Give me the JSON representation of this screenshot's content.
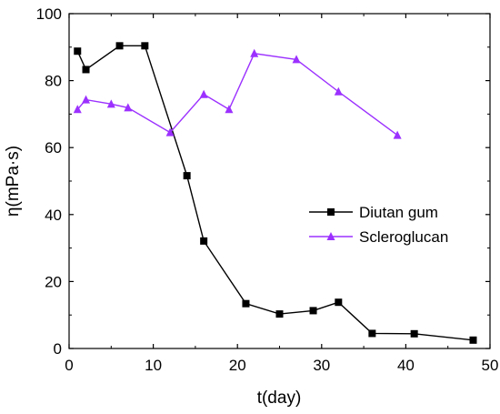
{
  "chart_data": {
    "type": "line",
    "title": "",
    "xlabel": "t(day)",
    "ylabel": "η(mPa·s)",
    "xlim": [
      0,
      50
    ],
    "ylim": [
      0,
      100
    ],
    "xticks": [
      0,
      10,
      20,
      30,
      40,
      50
    ],
    "yticks": [
      0,
      20,
      40,
      60,
      80,
      100
    ],
    "grid": false,
    "legend_position": "center-right",
    "series": [
      {
        "name": "Diutan gum",
        "color": "#000000",
        "marker": "square",
        "x": [
          1,
          2,
          6,
          9,
          14,
          16,
          21,
          25,
          29,
          32,
          36,
          41,
          48
        ],
        "y": [
          88.8,
          83.3,
          90.4,
          90.4,
          51.6,
          32.1,
          13.4,
          10.3,
          11.3,
          13.8,
          4.5,
          4.4,
          2.5
        ]
      },
      {
        "name": "Scleroglucan",
        "color": "#9b30ff",
        "marker": "triangle",
        "x": [
          1,
          2,
          5,
          7,
          12,
          16,
          19,
          22,
          27,
          32,
          39
        ],
        "y": [
          71.4,
          74.3,
          73.0,
          71.9,
          64.5,
          75.9,
          71.4,
          88.1,
          86.3,
          76.7,
          63.7
        ]
      }
    ]
  }
}
